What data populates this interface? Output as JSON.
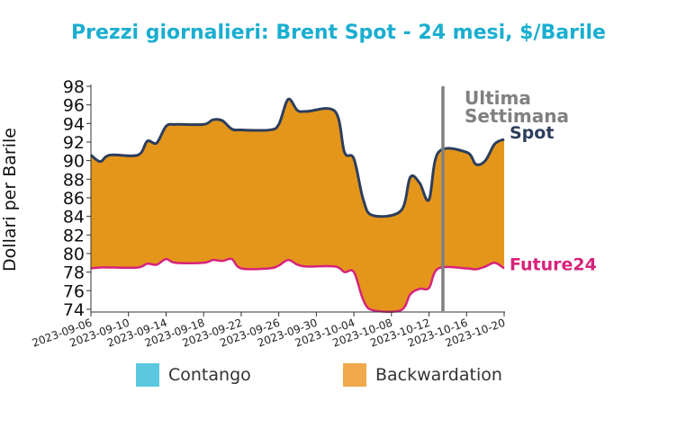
{
  "chart_data": {
    "type": "area",
    "title": "Prezzi giornalieri: Brent Spot - 24 mesi, $/Barile",
    "xlabel": "",
    "ylabel": "Dollari per Barile",
    "ylim": [
      73.8,
      98
    ],
    "yticks": [
      74,
      76,
      78,
      80,
      82,
      84,
      86,
      88,
      90,
      92,
      94,
      96,
      98
    ],
    "xlim": [
      "2023-09-06",
      "2023-10-20"
    ],
    "xticks": [
      "2023-09-06",
      "2023-09-10",
      "2023-09-14",
      "2023-09-18",
      "2023-09-22",
      "2023-09-26",
      "2023-09-30",
      "2023-10-04",
      "2023-10-08",
      "2023-10-12",
      "2023-10-16",
      "2023-10-20"
    ],
    "x": [
      "2023-09-06",
      "2023-09-07",
      "2023-09-08",
      "2023-09-11",
      "2023-09-12",
      "2023-09-13",
      "2023-09-14",
      "2023-09-15",
      "2023-09-18",
      "2023-09-19",
      "2023-09-20",
      "2023-09-21",
      "2023-09-22",
      "2023-09-25",
      "2023-09-26",
      "2023-09-27",
      "2023-09-28",
      "2023-09-29",
      "2023-10-02",
      "2023-10-03",
      "2023-10-04",
      "2023-10-05",
      "2023-10-06",
      "2023-10-09",
      "2023-10-10",
      "2023-10-11",
      "2023-10-12",
      "2023-10-13",
      "2023-10-16",
      "2023-10-17",
      "2023-10-18",
      "2023-10-19",
      "2023-10-20"
    ],
    "series": [
      {
        "name": "Spot",
        "color": "#2d3e5c",
        "values": [
          90.6,
          89.9,
          90.6,
          90.6,
          92.1,
          91.9,
          93.7,
          93.9,
          93.9,
          94.4,
          94.3,
          93.4,
          93.3,
          93.3,
          93.9,
          96.6,
          95.4,
          95.3,
          95.3,
          90.9,
          90.2,
          85.8,
          84.1,
          84.6,
          88.2,
          87.6,
          85.8,
          90.9,
          90.9,
          89.6,
          90.0,
          91.8,
          92.3
        ]
      },
      {
        "name": "Future24",
        "color": "#d6237b",
        "values": [
          78.4,
          78.5,
          78.5,
          78.5,
          78.9,
          78.8,
          79.4,
          79.0,
          79.0,
          79.3,
          79.2,
          79.4,
          78.4,
          78.4,
          78.7,
          79.3,
          78.8,
          78.6,
          78.6,
          78.0,
          78.0,
          75.0,
          73.9,
          73.9,
          75.6,
          76.2,
          76.3,
          78.4,
          78.4,
          78.3,
          78.6,
          79.0,
          78.4
        ]
      }
    ],
    "marker": {
      "date": "2023-10-13",
      "label_line1": "Ultima",
      "label_line2": "Settimana",
      "color": "#808080"
    },
    "legend": [
      {
        "label": "Contango",
        "color": "#5bc8df"
      },
      {
        "label": "Backwardation",
        "color": "#f0a94b"
      }
    ],
    "fill_color": "#e4961b",
    "grid": false,
    "legend_position": "bottom"
  }
}
